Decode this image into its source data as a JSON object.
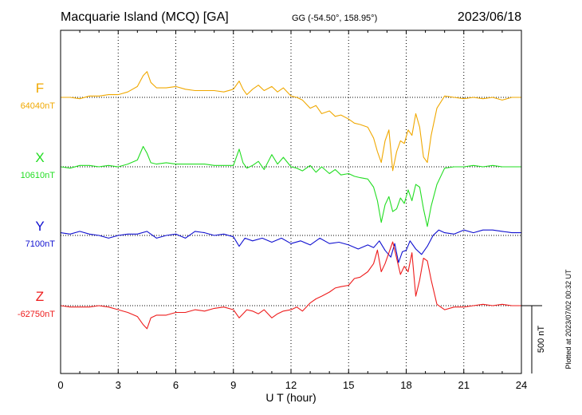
{
  "header": {
    "station": "Macquarie Island (MCQ)  [GA]",
    "coords": "GG (-54.50°, 158.95°)",
    "date": "2023/06/18"
  },
  "footer": {
    "plotted": "Plotted at 2023/07/02 00:32 UT"
  },
  "chart_data": {
    "type": "line",
    "xlabel": "U T (hour)",
    "ylabel": "",
    "xlim": [
      0,
      24
    ],
    "xticks": [
      0,
      3,
      6,
      9,
      12,
      15,
      18,
      21,
      24
    ],
    "grid": true,
    "scale_bar": {
      "label": "500 nT",
      "value": 500
    },
    "series": [
      {
        "name": "F",
        "baseline_label": "64040nT",
        "baseline": 64040,
        "color": "#f0a800",
        "x": [
          0,
          0.5,
          1,
          1.5,
          2,
          2.5,
          3,
          3.5,
          4,
          4.3,
          4.5,
          4.7,
          5,
          5.5,
          6,
          6.5,
          7,
          7.5,
          8,
          8.5,
          9,
          9.3,
          9.5,
          9.7,
          10,
          10.3,
          10.6,
          11,
          11.3,
          11.6,
          12,
          12.3,
          12.6,
          13,
          13.3,
          13.6,
          14,
          14.3,
          14.6,
          15,
          15.3,
          15.6,
          16,
          16.3,
          16.5,
          16.7,
          16.9,
          17.1,
          17.3,
          17.5,
          17.7,
          17.9,
          18.1,
          18.3,
          18.5,
          18.7,
          18.9,
          19.1,
          19.3,
          19.6,
          20,
          20.5,
          21,
          21.5,
          22,
          22.5,
          23,
          23.5,
          24
        ],
        "values": [
          64040,
          64040,
          64030,
          64050,
          64050,
          64060,
          64060,
          64080,
          64120,
          64200,
          64230,
          64150,
          64110,
          64110,
          64120,
          64100,
          64090,
          64090,
          64090,
          64080,
          64100,
          64160,
          64100,
          64060,
          64100,
          64130,
          64090,
          64120,
          64080,
          64110,
          64050,
          64040,
          64020,
          63960,
          63980,
          63920,
          63940,
          63900,
          63910,
          63880,
          63850,
          63840,
          63820,
          63740,
          63640,
          63560,
          63720,
          63800,
          63500,
          63640,
          63720,
          63700,
          63800,
          63760,
          63920,
          63820,
          63600,
          63560,
          63760,
          63960,
          64050,
          64040,
          64030,
          64040,
          64030,
          64040,
          64020,
          64040,
          64040
        ]
      },
      {
        "name": "X",
        "baseline_label": "10610nT",
        "baseline": 10610,
        "color": "#22dd22",
        "x": [
          0,
          0.5,
          1,
          1.5,
          2,
          2.5,
          3,
          3.5,
          4,
          4.3,
          4.5,
          4.7,
          5,
          5.5,
          6,
          6.5,
          7,
          7.5,
          8,
          8.5,
          9,
          9.3,
          9.5,
          9.7,
          10,
          10.3,
          10.6,
          11,
          11.3,
          11.6,
          12,
          12.3,
          12.6,
          13,
          13.3,
          13.6,
          14,
          14.3,
          14.6,
          15,
          15.3,
          15.6,
          16,
          16.3,
          16.5,
          16.7,
          16.9,
          17.1,
          17.3,
          17.5,
          17.7,
          17.9,
          18.1,
          18.3,
          18.5,
          18.7,
          18.9,
          19.1,
          19.3,
          19.6,
          20,
          20.5,
          21,
          21.5,
          22,
          22.5,
          23,
          23.5,
          24
        ],
        "values": [
          10610,
          10600,
          10620,
          10620,
          10610,
          10620,
          10610,
          10630,
          10660,
          10760,
          10710,
          10640,
          10630,
          10640,
          10630,
          10630,
          10630,
          10630,
          10620,
          10620,
          10620,
          10740,
          10640,
          10600,
          10620,
          10650,
          10590,
          10700,
          10630,
          10680,
          10610,
          10600,
          10580,
          10620,
          10570,
          10610,
          10560,
          10590,
          10550,
          10560,
          10540,
          10530,
          10520,
          10460,
          10360,
          10200,
          10330,
          10390,
          10280,
          10300,
          10380,
          10340,
          10440,
          10360,
          10480,
          10460,
          10300,
          10170,
          10320,
          10480,
          10600,
          10610,
          10610,
          10620,
          10610,
          10620,
          10610,
          10610,
          10610
        ]
      },
      {
        "name": "Y",
        "baseline_label": "7100nT",
        "baseline": 7100,
        "color": "#1010d0",
        "x": [
          0,
          0.5,
          1,
          1.5,
          2,
          2.5,
          3,
          3.5,
          4,
          4.5,
          5,
          5.5,
          6,
          6.5,
          7,
          7.5,
          8,
          8.5,
          9,
          9.3,
          9.6,
          10,
          10.5,
          11,
          11.5,
          12,
          12.5,
          13,
          13.5,
          14,
          14.5,
          15,
          15.5,
          16,
          16.3,
          16.6,
          16.9,
          17.2,
          17.4,
          17.6,
          17.8,
          18,
          18.2,
          18.5,
          18.8,
          19.1,
          19.4,
          19.7,
          20,
          20.5,
          21,
          21.5,
          22,
          22.5,
          23,
          23.5,
          24
        ],
        "values": [
          7120,
          7110,
          7130,
          7110,
          7100,
          7080,
          7100,
          7110,
          7110,
          7130,
          7080,
          7100,
          7110,
          7080,
          7130,
          7120,
          7100,
          7110,
          7090,
          7020,
          7080,
          7060,
          7080,
          7050,
          7080,
          7040,
          7060,
          7030,
          7080,
          7040,
          7050,
          7030,
          7000,
          7030,
          7010,
          7060,
          6990,
          6940,
          7040,
          6900,
          6980,
          6990,
          7060,
          7000,
          6960,
          7020,
          7100,
          7140,
          7120,
          7110,
          7140,
          7120,
          7140,
          7140,
          7130,
          7120,
          7120
        ]
      },
      {
        "name": "Z",
        "baseline_label": "-62750nT",
        "baseline": -62750,
        "color": "#ee1c1c",
        "x": [
          0,
          0.5,
          1,
          1.5,
          2,
          2.5,
          3,
          3.5,
          4,
          4.3,
          4.5,
          4.7,
          5,
          5.5,
          6,
          6.5,
          7,
          7.5,
          8,
          8.5,
          9,
          9.3,
          9.5,
          9.7,
          10,
          10.3,
          10.6,
          11,
          11.3,
          11.6,
          12,
          12.3,
          12.6,
          13,
          13.3,
          13.6,
          14,
          14.3,
          14.6,
          15,
          15.3,
          15.6,
          16,
          16.3,
          16.5,
          16.7,
          16.9,
          17.1,
          17.3,
          17.5,
          17.7,
          17.9,
          18.1,
          18.3,
          18.5,
          18.7,
          18.9,
          19.1,
          19.3,
          19.6,
          20,
          20.5,
          21,
          21.5,
          22,
          22.5,
          23,
          23.5,
          24
        ],
        "values": [
          -62750,
          -62760,
          -62760,
          -62760,
          -62750,
          -62760,
          -62780,
          -62800,
          -62830,
          -62890,
          -62920,
          -62840,
          -62820,
          -62820,
          -62800,
          -62800,
          -62780,
          -62790,
          -62770,
          -62760,
          -62780,
          -62840,
          -62810,
          -62780,
          -62790,
          -62810,
          -62780,
          -62840,
          -62810,
          -62790,
          -62780,
          -62760,
          -62790,
          -62730,
          -62700,
          -62680,
          -62650,
          -62620,
          -62610,
          -62600,
          -62550,
          -62540,
          -62500,
          -62440,
          -62340,
          -62500,
          -62440,
          -62360,
          -62280,
          -62400,
          -62520,
          -62460,
          -62500,
          -62360,
          -62680,
          -62560,
          -62400,
          -62420,
          -62560,
          -62740,
          -62780,
          -62760,
          -62760,
          -62750,
          -62740,
          -62750,
          -62740,
          -62750,
          -62750
        ]
      }
    ]
  }
}
